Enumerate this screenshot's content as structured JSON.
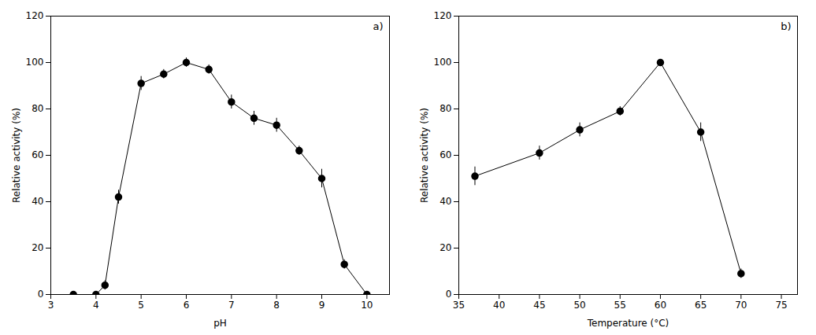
{
  "chart_data": [
    {
      "type": "line",
      "annotation": "a)",
      "xlabel": "pH",
      "ylabel": "Relative activity (%)",
      "x": [
        3.5,
        4.0,
        4.2,
        4.5,
        5.0,
        5.5,
        6.0,
        6.5,
        7.0,
        7.5,
        8.0,
        8.5,
        9.0,
        9.5,
        10.0
      ],
      "values": [
        0,
        0,
        4,
        42,
        91,
        95,
        100,
        97,
        83,
        76,
        73,
        62,
        50,
        13,
        0
      ],
      "error": [
        1,
        1,
        2,
        3,
        3,
        2,
        2,
        2,
        3,
        3,
        3,
        2,
        4,
        2,
        1
      ],
      "color": "black",
      "marker": "circle",
      "line_style": "solid",
      "xlim": [
        3,
        10.5
      ],
      "xticks": [
        3,
        4,
        5,
        6,
        7,
        8,
        9,
        10
      ],
      "ylim": [
        0,
        120
      ],
      "yticks": [
        0,
        20,
        40,
        60,
        80,
        100,
        120
      ]
    },
    {
      "type": "line",
      "annotation": "b)",
      "xlabel": "Temperature (°C)",
      "ylabel": "Relative activity (%)",
      "x": [
        37,
        45,
        50,
        55,
        60,
        65,
        70
      ],
      "values": [
        51,
        61,
        71,
        79,
        100,
        70,
        9
      ],
      "error": [
        4,
        3,
        3,
        2,
        1,
        4,
        2
      ],
      "color": "black",
      "marker": "circle",
      "line_style": "solid",
      "xlim": [
        35,
        77
      ],
      "xticks": [
        35,
        40,
        45,
        50,
        55,
        60,
        65,
        70,
        75
      ],
      "ylim": [
        0,
        120
      ],
      "yticks": [
        0,
        20,
        40,
        60,
        80,
        100,
        120
      ]
    }
  ]
}
